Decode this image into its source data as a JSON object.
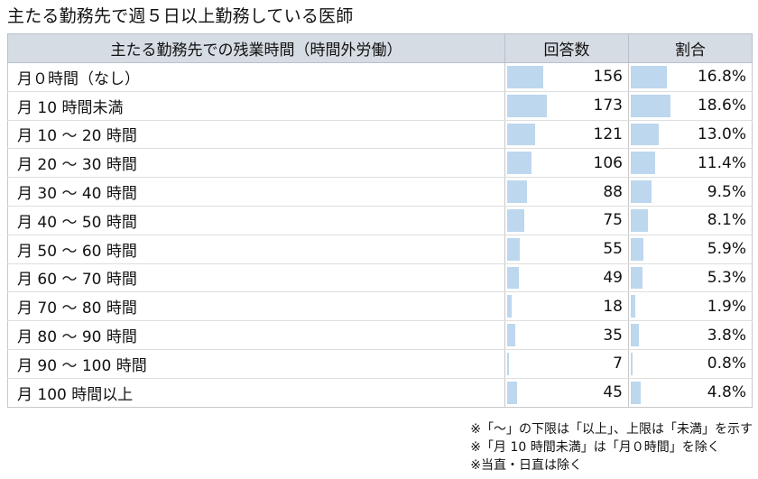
{
  "title": "主たる勤務先で週５日以上勤務している医師",
  "headers": {
    "category": "主たる勤務先での残業時間（時間外労働）",
    "count": "回答数",
    "ratio": "割合"
  },
  "rows": [
    {
      "label": "月０時間（なし）",
      "count": "156",
      "ratio": "16.8%",
      "count_value": 156,
      "ratio_value": 16.8
    },
    {
      "label": "月 10 時間未満",
      "count": "173",
      "ratio": "18.6%",
      "count_value": 173,
      "ratio_value": 18.6
    },
    {
      "label": "月 10 ～ 20 時間",
      "count": "121",
      "ratio": "13.0%",
      "count_value": 121,
      "ratio_value": 13.0
    },
    {
      "label": "月 20 ～ 30 時間",
      "count": "106",
      "ratio": "11.4%",
      "count_value": 106,
      "ratio_value": 11.4
    },
    {
      "label": "月 30 ～ 40 時間",
      "count": "88",
      "ratio": "9.5%",
      "count_value": 88,
      "ratio_value": 9.5
    },
    {
      "label": "月 40 ～ 50 時間",
      "count": "75",
      "ratio": "8.1%",
      "count_value": 75,
      "ratio_value": 8.1
    },
    {
      "label": "月 50 ～ 60 時間",
      "count": "55",
      "ratio": "5.9%",
      "count_value": 55,
      "ratio_value": 5.9
    },
    {
      "label": "月 60 ～ 70 時間",
      "count": "49",
      "ratio": "5.3%",
      "count_value": 49,
      "ratio_value": 5.3
    },
    {
      "label": "月 70 ～ 80 時間",
      "count": "18",
      "ratio": "1.9%",
      "count_value": 18,
      "ratio_value": 1.9
    },
    {
      "label": "月 80 ～ 90 時間",
      "count": "35",
      "ratio": "3.8%",
      "count_value": 35,
      "ratio_value": 3.8
    },
    {
      "label": "月 90 ～ 100 時間",
      "count": "7",
      "ratio": "0.8%",
      "count_value": 7,
      "ratio_value": 0.8
    },
    {
      "label": "月 100 時間以上",
      "count": "45",
      "ratio": "4.8%",
      "count_value": 45,
      "ratio_value": 4.8
    }
  ],
  "notes": [
    "※「～」の下限は「以上」、上限は「未満」を示す",
    "※「月 10 時間未満」は「月０時間」を除く",
    "※当直・日直は除く"
  ],
  "colors": {
    "header_bg": "#d6dce4",
    "bar": "#bdd7ee"
  }
}
